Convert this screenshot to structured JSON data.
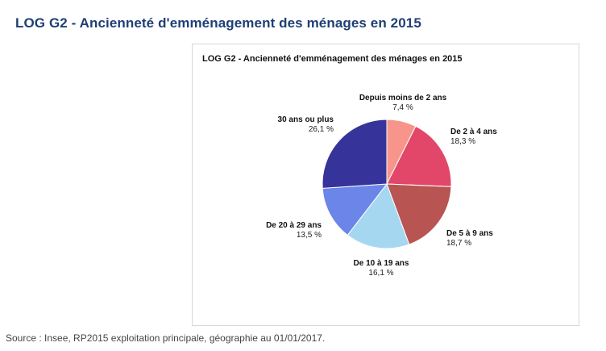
{
  "page": {
    "title": "LOG G2 - Ancienneté d'emménagement des ménages en 2015",
    "source": "Source : Insee, RP2015 exploitation principale, géographie au 01/01/2017."
  },
  "chart_data": {
    "type": "pie",
    "title": "LOG G2 - Ancienneté d'emménagement des ménages en 2015",
    "unit": "%",
    "slices": [
      {
        "label": "Depuis moins de 2 ans",
        "value": 7.4,
        "value_label": "7,4 %",
        "color": "#f7958a"
      },
      {
        "label": "De 2 à 4 ans",
        "value": 18.3,
        "value_label": "18,3 %",
        "color": "#e2476a"
      },
      {
        "label": "De 5 à 9 ans",
        "value": 18.7,
        "value_label": "18,7 %",
        "color": "#b85552"
      },
      {
        "label": "De 10 à 19 ans",
        "value": 16.1,
        "value_label": "16,1 %",
        "color": "#a5d8f0"
      },
      {
        "label": "De 20 à 29 ans",
        "value": 13.5,
        "value_label": "13,5 %",
        "color": "#6b86e8"
      },
      {
        "label": "30 ans ou plus",
        "value": 26.1,
        "value_label": "26,1 %",
        "color": "#36339a"
      }
    ]
  }
}
